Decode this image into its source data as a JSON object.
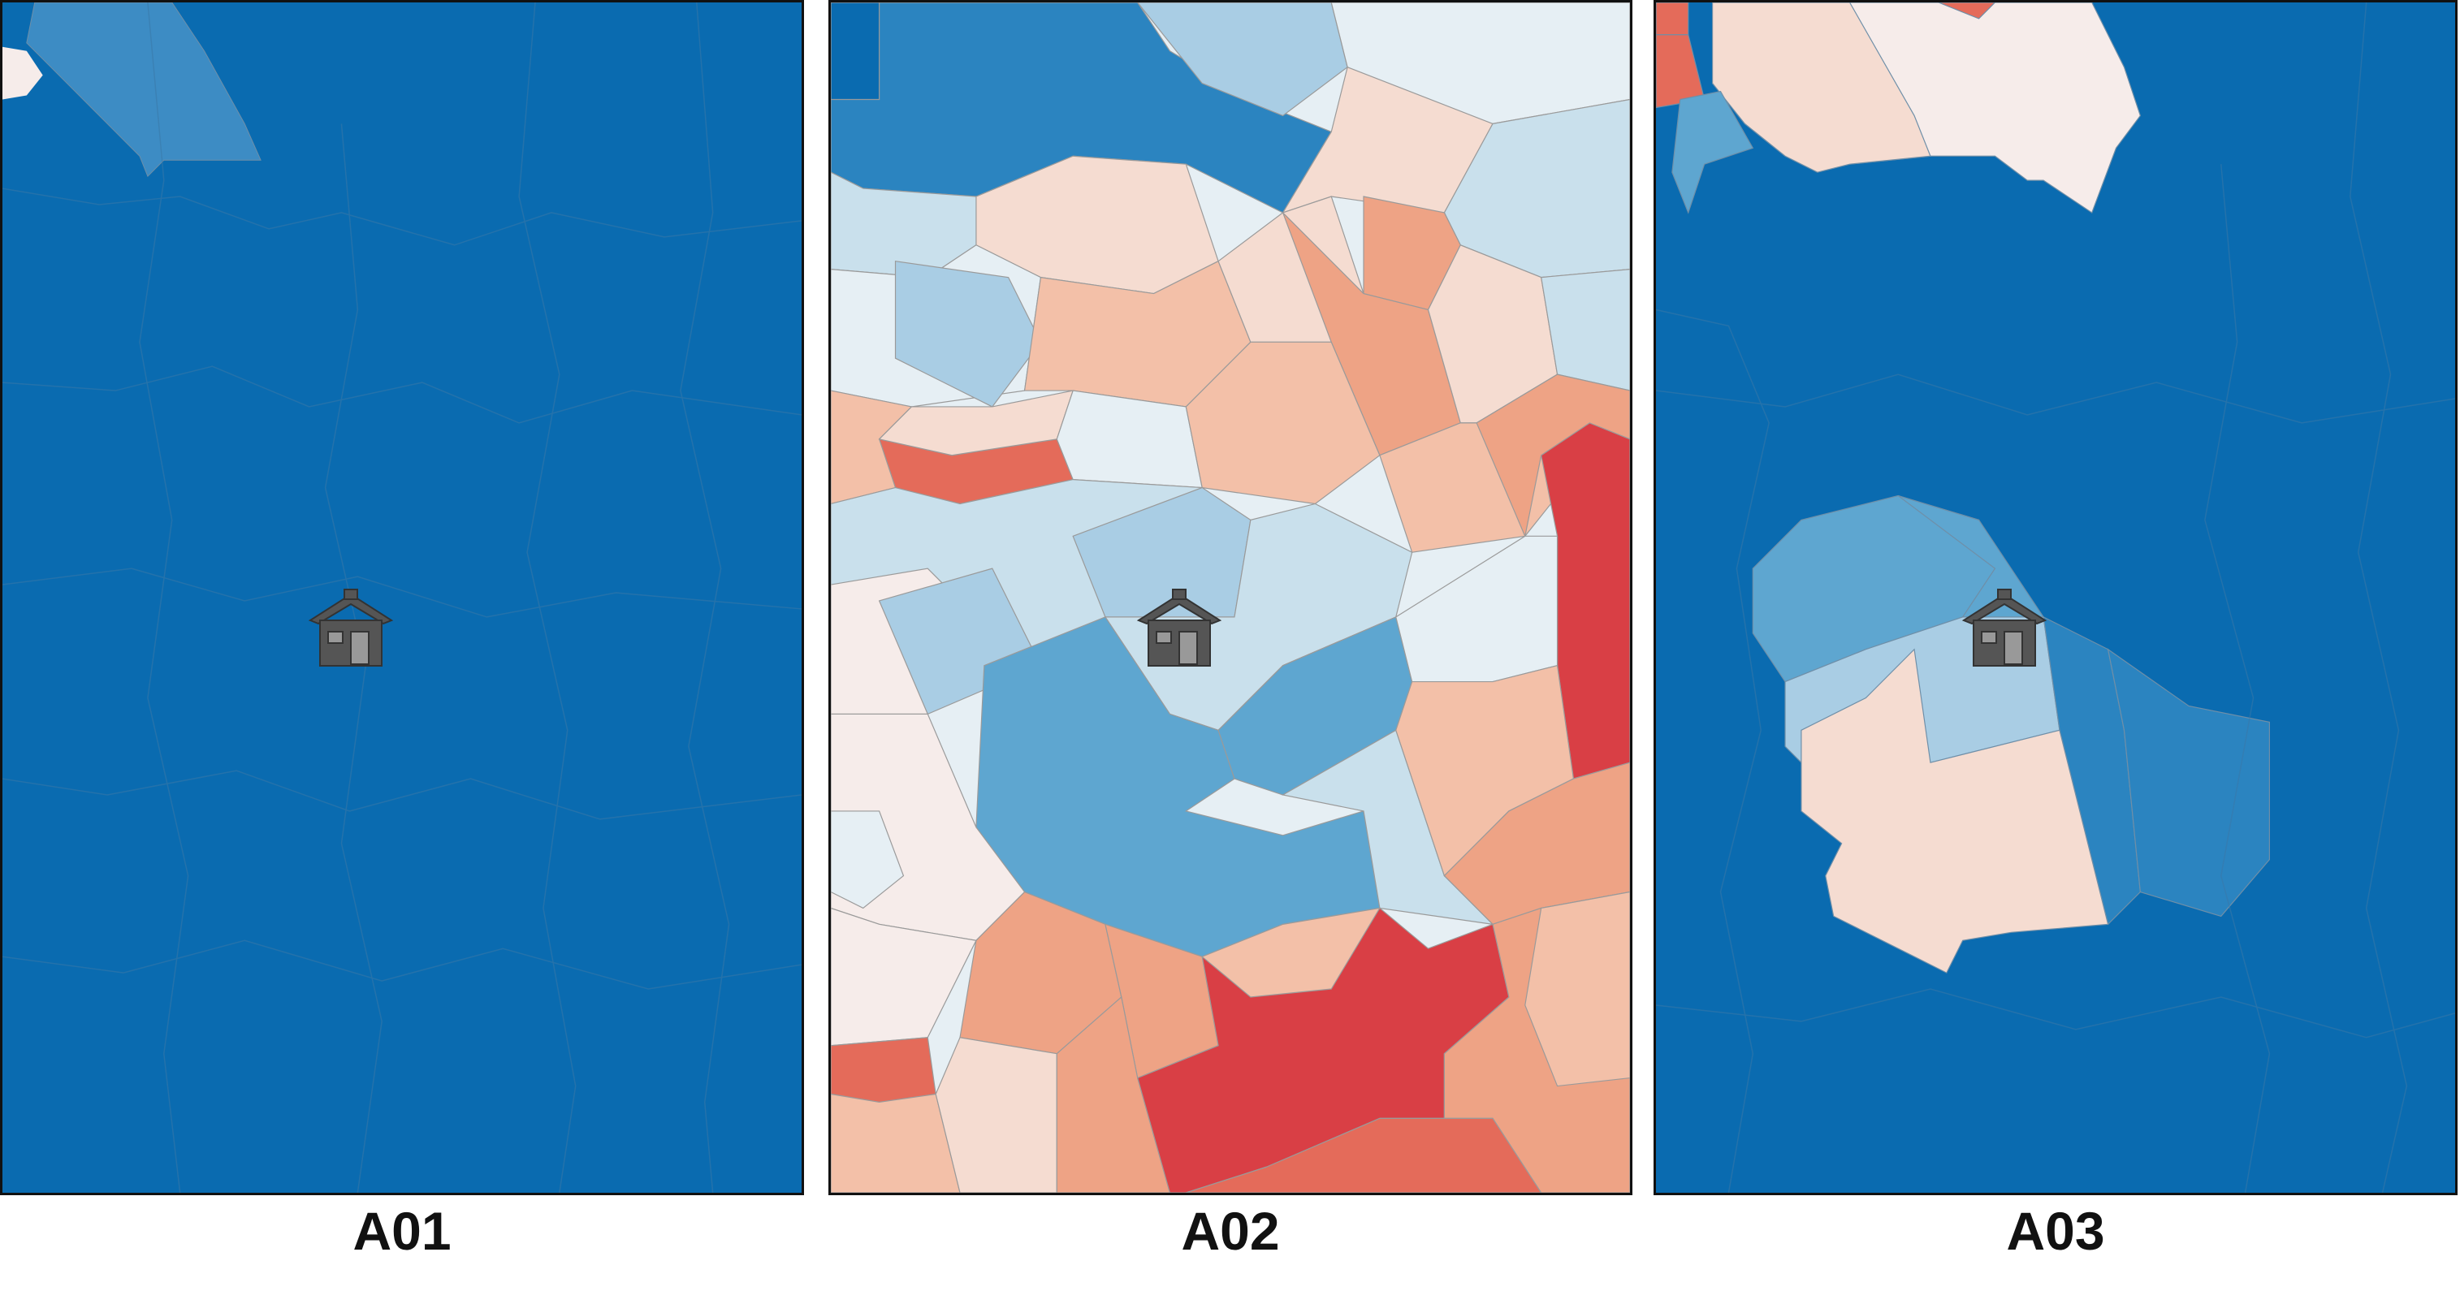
{
  "panels": [
    {
      "id": "A01",
      "label": "A01",
      "marker": "house-icon"
    },
    {
      "id": "A02",
      "label": "A02",
      "marker": "house-icon"
    },
    {
      "id": "A03",
      "label": "A03",
      "marker": "house-icon"
    }
  ],
  "colors": {
    "dark_blue": "#0a6bb0",
    "mid_blue": "#2b84c0",
    "blue": "#5ea6d0",
    "light_blue": "#a9cde4",
    "pale_blue": "#c9e0ec",
    "very_pale_blue": "#e6eff4",
    "near_white": "#f6ecea",
    "pale_peach": "#f5dcd1",
    "light_salmon": "#f3c0a8",
    "salmon": "#eea385",
    "coral": "#e46b5a",
    "red": "#d93f45",
    "border": "#6f8fa8",
    "house": "#555555"
  }
}
